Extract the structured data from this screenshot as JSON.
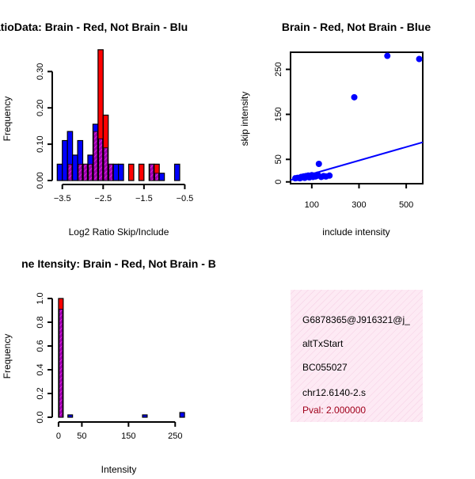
{
  "colors": {
    "red": "#ff0000",
    "blue": "#0000ff",
    "purple": "#c000c0",
    "pink_fill": "#fde7f3",
    "pval": "#a0001a"
  },
  "chart_data": [
    {
      "type": "bar",
      "title": "RatioData: Brain - Red, Not Brain - Blu",
      "xlabel": "Log2 Ratio Skip/Include",
      "ylabel": "Frequency",
      "x_ticks": [
        -3.5,
        -2.5,
        -1.5,
        -0.5
      ],
      "y_ticks": [
        0.0,
        0.1,
        0.2,
        0.3
      ],
      "xlim": [
        -3.65,
        -0.45
      ],
      "ylim": [
        0,
        0.34
      ],
      "bin_width": 0.125,
      "bin_starts": [
        -3.625,
        -3.5,
        -3.375,
        -3.25,
        -3.125,
        -3.0,
        -2.875,
        -2.75,
        -2.625,
        -2.5,
        -2.375,
        -2.25,
        -2.125,
        -2.0,
        -1.875,
        -1.75,
        -1.625,
        -1.5,
        -1.375,
        -1.25,
        -1.125,
        -1.0,
        -0.875,
        -0.75,
        -0.625
      ],
      "series": [
        {
          "name": "Brain",
          "color": "red",
          "values": [
            0,
            0,
            0.045,
            0,
            0.045,
            0.045,
            0.045,
            0.135,
            0.36,
            0.18,
            0.045,
            0,
            0,
            0,
            0.045,
            0,
            0.045,
            0,
            0.045,
            0.045,
            0,
            0,
            0,
            0,
            0
          ]
        },
        {
          "name": "Not Brain",
          "color": "blue",
          "values": [
            0.045,
            0.11,
            0.135,
            0.07,
            0.11,
            0.045,
            0.07,
            0.155,
            0.115,
            0.09,
            0.045,
            0.045,
            0.045,
            0,
            0,
            0,
            0,
            0,
            0.045,
            0.02,
            0.02,
            0,
            0,
            0.045,
            0
          ]
        }
      ]
    },
    {
      "type": "scatter",
      "title": "Brain - Red, Not Brain - Blue",
      "xlabel": "include intensity",
      "ylabel": "skip intensity",
      "x_ticks": [
        100,
        300,
        500
      ],
      "y_ticks": [
        0,
        50,
        150,
        250
      ],
      "xlim": [
        10,
        570
      ],
      "ylim": [
        -4,
        288
      ],
      "points": [
        {
          "x": 30,
          "y": 8
        },
        {
          "x": 40,
          "y": 9
        },
        {
          "x": 50,
          "y": 8
        },
        {
          "x": 55,
          "y": 11
        },
        {
          "x": 60,
          "y": 10
        },
        {
          "x": 65,
          "y": 12
        },
        {
          "x": 70,
          "y": 9
        },
        {
          "x": 75,
          "y": 13
        },
        {
          "x": 80,
          "y": 11
        },
        {
          "x": 85,
          "y": 14
        },
        {
          "x": 90,
          "y": 10
        },
        {
          "x": 95,
          "y": 12
        },
        {
          "x": 100,
          "y": 15
        },
        {
          "x": 105,
          "y": 11
        },
        {
          "x": 110,
          "y": 14
        },
        {
          "x": 115,
          "y": 12
        },
        {
          "x": 120,
          "y": 13
        },
        {
          "x": 125,
          "y": 16
        },
        {
          "x": 130,
          "y": 40
        },
        {
          "x": 140,
          "y": 11
        },
        {
          "x": 150,
          "y": 13
        },
        {
          "x": 160,
          "y": 12
        },
        {
          "x": 175,
          "y": 14
        },
        {
          "x": 280,
          "y": 188
        },
        {
          "x": 420,
          "y": 280
        },
        {
          "x": 555,
          "y": 273
        }
      ],
      "regression": {
        "x": [
          10,
          570
        ],
        "y": [
          4,
          88
        ]
      }
    },
    {
      "type": "bar",
      "title": "ne Itensity: Brain - Red, Not Brain - B",
      "xlabel": "Intensity",
      "ylabel": "Frequency",
      "x_ticks": [
        0,
        50,
        150,
        250
      ],
      "y_ticks": [
        0.0,
        0.2,
        0.4,
        0.6,
        0.8,
        1.0
      ],
      "xlim": [
        -5,
        275
      ],
      "ylim": [
        0,
        1.04
      ],
      "bin_width": 10,
      "bin_starts": [
        0,
        10,
        20,
        30,
        40,
        50,
        60,
        70,
        80,
        90,
        100,
        110,
        120,
        130,
        140,
        150,
        160,
        170,
        180,
        190,
        200,
        210,
        220,
        230,
        240,
        250,
        260
      ],
      "series": [
        {
          "name": "Brain",
          "color": "red",
          "values": [
            1.0,
            0,
            0,
            0,
            0,
            0,
            0,
            0,
            0,
            0,
            0,
            0,
            0,
            0,
            0,
            0,
            0,
            0,
            0,
            0,
            0,
            0,
            0,
            0,
            0,
            0,
            0
          ]
        },
        {
          "name": "Not Brain",
          "color": "blue",
          "values": [
            0.91,
            0,
            0.02,
            0,
            0,
            0,
            0,
            0,
            0,
            0,
            0,
            0,
            0,
            0,
            0,
            0,
            0,
            0,
            0.02,
            0,
            0,
            0,
            0,
            0,
            0,
            0,
            0.04
          ]
        }
      ]
    }
  ],
  "info_panel": {
    "lines": [
      "G6878365@J916321@j_",
      "altTxStart",
      "BC055027",
      "chr12.6140-2.s"
    ],
    "pval": "Pval: 2.000000"
  }
}
